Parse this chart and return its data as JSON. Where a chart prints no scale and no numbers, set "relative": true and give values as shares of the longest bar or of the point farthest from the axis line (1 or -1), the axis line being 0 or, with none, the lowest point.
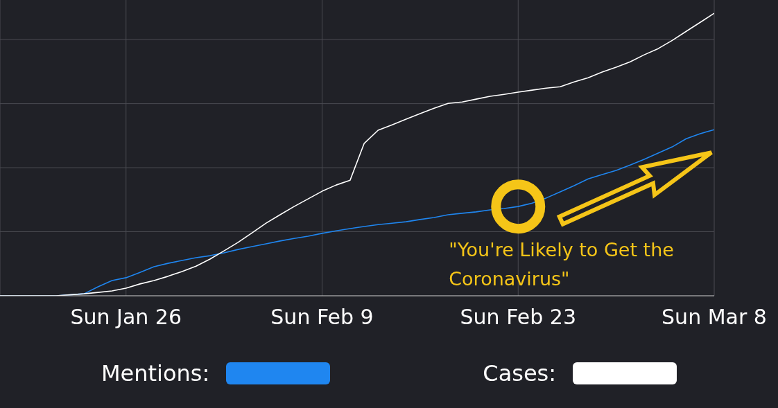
{
  "chart_data": {
    "type": "line",
    "relative": true,
    "x": [
      "--01-17",
      "--01-21",
      "--01-23",
      "--01-24",
      "--01-25",
      "--01-26",
      "--01-27",
      "--01-28",
      "--01-29",
      "--01-30",
      "--01-31",
      "--02-01",
      "--02-02",
      "--02-03",
      "--02-04",
      "--02-05",
      "--02-06",
      "--02-07",
      "--02-08",
      "--02-09",
      "--02-10",
      "--02-11",
      "--02-12",
      "--02-13",
      "--02-14",
      "--02-15",
      "--02-16",
      "--02-17",
      "--02-18",
      "--02-19",
      "--02-20",
      "--02-21",
      "--02-22",
      "--02-23",
      "--02-24",
      "--02-25",
      "--02-26",
      "--02-27",
      "--02-28",
      "--02-29",
      "--03-01",
      "--03-02",
      "--03-03",
      "--03-04",
      "--03-05",
      "--03-06",
      "--03-07",
      "--03-08"
    ],
    "series": [
      {
        "name": "Mentions:",
        "color": "#1f86f0",
        "values": [
          0,
          0,
          0.007,
          0.032,
          0.054,
          0.064,
          0.083,
          0.103,
          0.115,
          0.125,
          0.135,
          0.142,
          0.152,
          0.164,
          0.174,
          0.184,
          0.194,
          0.203,
          0.211,
          0.221,
          0.23,
          0.238,
          0.245,
          0.252,
          0.257,
          0.262,
          0.27,
          0.277,
          0.287,
          0.292,
          0.297,
          0.304,
          0.309,
          0.316,
          0.328,
          0.346,
          0.368,
          0.39,
          0.414,
          0.429,
          0.444,
          0.463,
          0.483,
          0.505,
          0.527,
          0.556,
          0.574,
          0.588
        ]
      },
      {
        "name": "Cases:",
        "color": "#ffffff",
        "values": [
          0,
          0,
          0.007,
          0.012,
          0.017,
          0.027,
          0.042,
          0.054,
          0.069,
          0.086,
          0.105,
          0.13,
          0.159,
          0.189,
          0.223,
          0.257,
          0.287,
          0.316,
          0.343,
          0.37,
          0.392,
          0.409,
          0.539,
          0.586,
          0.605,
          0.625,
          0.645,
          0.664,
          0.681,
          0.686,
          0.696,
          0.706,
          0.713,
          0.721,
          0.728,
          0.735,
          0.74,
          0.757,
          0.772,
          0.792,
          0.809,
          0.828,
          0.853,
          0.875,
          0.904,
          0.936,
          0.968,
          1
        ]
      }
    ],
    "xlim": [
      "--01-17",
      "--03-08"
    ],
    "xticks": [
      {
        "value": "--01-26",
        "label": "Sun Jan 26"
      },
      {
        "value": "--02-09",
        "label": "Sun Feb 9"
      },
      {
        "value": "--02-23",
        "label": "Sun Feb 23"
      },
      {
        "value": "--03-08",
        "label": "Sun Mar 8"
      }
    ],
    "grid": true,
    "legend": "bottom",
    "marker": "none",
    "line_style": "solid",
    "annotations": [
      {
        "text": "\"You're Likely to Get the Coronavirus\"",
        "x": "--02-23",
        "y": 0.316
      }
    ]
  }
}
